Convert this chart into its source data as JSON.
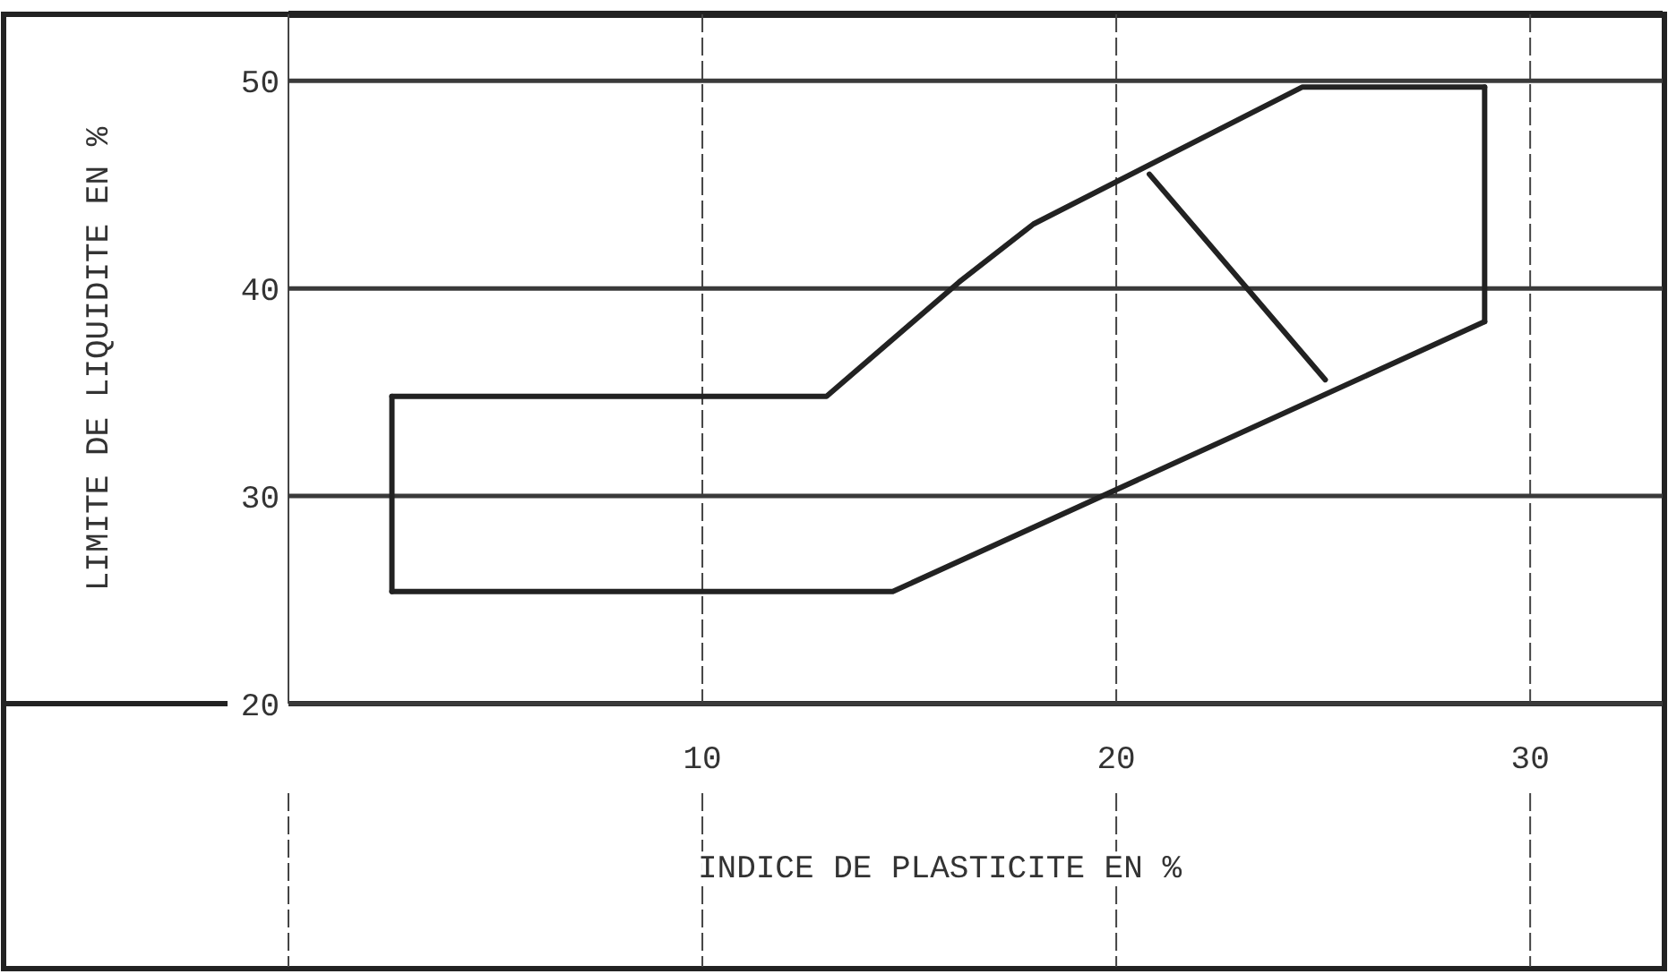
{
  "chart_data": {
    "type": "line",
    "xlabel": "INDICE DE PLASTICITE EN %",
    "ylabel": "LIMITE DE LIQUIDITE EN %",
    "xlim": [
      0,
      33.2
    ],
    "ylim": [
      20,
      53.2
    ],
    "xticks": [
      {
        "value": 0,
        "label": null
      },
      10,
      20,
      30
    ],
    "yticks": [
      20,
      30,
      40,
      50
    ],
    "grid": true,
    "marker": "none",
    "line_style": "solid",
    "series": [
      {
        "color": "#222222",
        "x": [
          2.5,
          13,
          16.2,
          18,
          24.5,
          28.9
        ],
        "values": [
          34.8,
          34.8,
          40.3,
          43.1,
          49.7,
          49.7
        ]
      },
      {
        "color": "#222222",
        "x": [
          2.5,
          14.6,
          28.9
        ],
        "values": [
          25.4,
          25.4,
          38.4
        ]
      },
      {
        "color": "#222222",
        "x": [
          2.5,
          2.5
        ],
        "values": [
          25.4,
          34.8
        ]
      },
      {
        "color": "#222222",
        "x": [
          28.9,
          28.9
        ],
        "values": [
          38.4,
          49.7
        ]
      },
      {
        "color": "#222222",
        "x": [
          20.8,
          25.05
        ],
        "values": [
          45.5,
          35.6
        ]
      }
    ]
  }
}
